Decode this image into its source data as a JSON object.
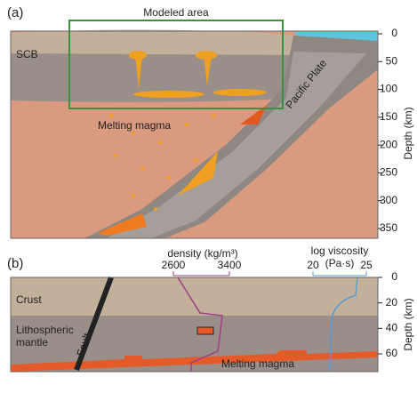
{
  "panel_a": {
    "label": "(a)",
    "title": "Modeled area",
    "axis_label": "Depth (km)",
    "labels": [
      "SCB",
      "Pacific Plate",
      "Melting magma"
    ],
    "ylim": [
      0,
      350
    ],
    "yticks": [
      0,
      50,
      100,
      150,
      200,
      250,
      300,
      350
    ]
  },
  "panel_b": {
    "label": "(b)",
    "axis_label": "Depth (km)",
    "ylim": [
      0,
      60
    ],
    "yticks": [
      0,
      20,
      40,
      60
    ],
    "labels": [
      "Crust",
      "Lithospheric",
      "mantle",
      "Fault",
      "Melting magma"
    ],
    "density": {
      "title": "density (kg/m³)",
      "xlim": [
        2600,
        3400
      ],
      "xticks": [
        2600,
        3400
      ]
    },
    "viscosity": {
      "title": "log viscosity",
      "unit": "(Pa·s)",
      "xlim": [
        20,
        25
      ],
      "xticks": [
        20,
        25
      ]
    }
  }
}
